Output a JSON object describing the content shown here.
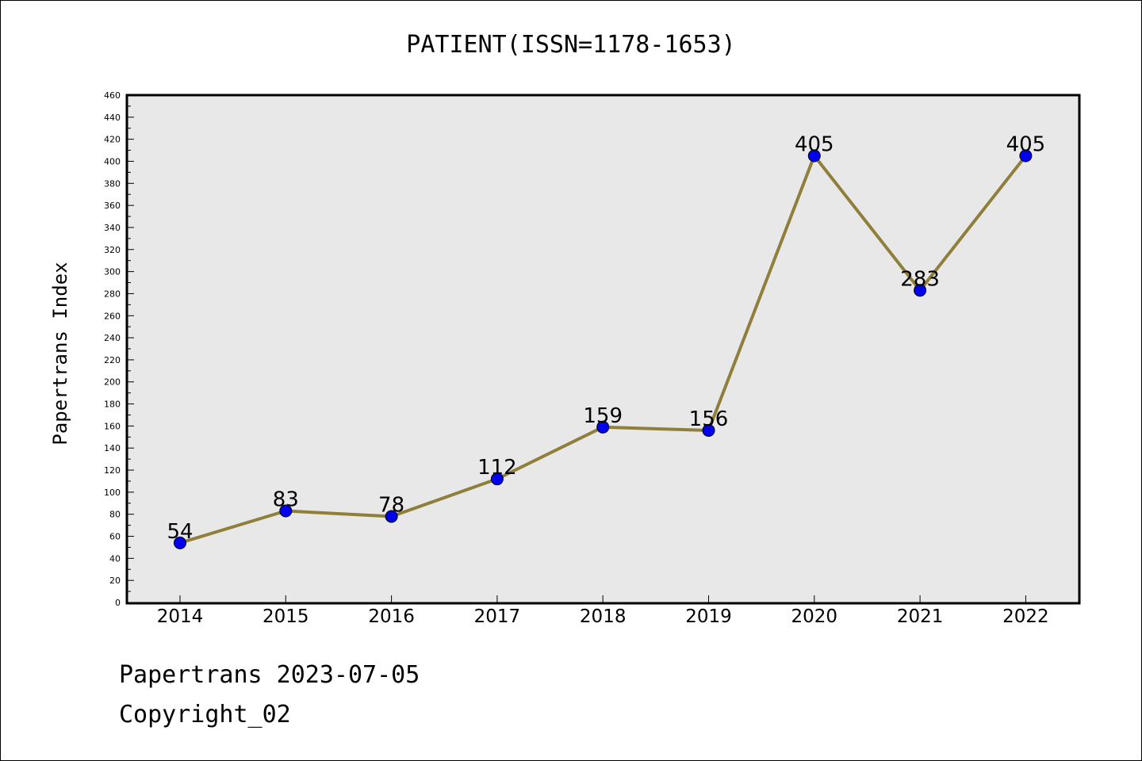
{
  "chart_data": {
    "type": "line",
    "title": "PATIENT(ISSN=1178-1653)",
    "xlabel": "",
    "ylabel": "Papertrans Index",
    "categories": [
      "2014",
      "2015",
      "2016",
      "2017",
      "2018",
      "2019",
      "2020",
      "2021",
      "2022"
    ],
    "values": [
      54,
      83,
      78,
      112,
      159,
      156,
      405,
      283,
      405
    ],
    "ylim": [
      0,
      460
    ],
    "ytick_step": 20,
    "grid": false,
    "line_color": "#8f7f3b",
    "marker_color": "#0000ee",
    "plot_background": "#e8e8e8",
    "data_labels": true
  },
  "footer": {
    "date_line": "Papertrans 2023-07-05",
    "copyright_line": "Copyright_02"
  }
}
